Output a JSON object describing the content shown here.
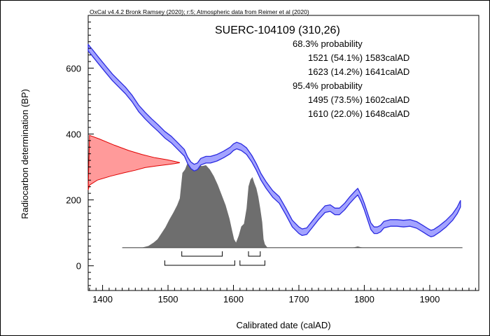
{
  "chart_data": {
    "type": "area",
    "credit": "OxCal v4.4.2 Bronk Ramsey (2020); r:5; Atmospheric data from Reimer et al (2020)",
    "title": "SUERC-104109 (310,26)",
    "xlabel": "Calibrated date (calAD)",
    "ylabel": "Radiocarbon determination (BP)",
    "xlim": [
      1378,
      1975
    ],
    "ylim": [
      -75,
      760
    ],
    "x_ticks": [
      "1400",
      "1500",
      "1600",
      "1700",
      "1800",
      "1900"
    ],
    "x_tick_values": [
      1400,
      1500,
      1600,
      1700,
      1800,
      1900
    ],
    "y_ticks": [
      "0",
      "200",
      "400",
      "600"
    ],
    "y_tick_values": [
      0,
      200,
      400,
      600
    ],
    "measurement": {
      "name": "SUERC-104109",
      "bp": 310,
      "error": 26
    },
    "ranges_text": [
      "68.3% probability",
      "1521 (54.1%) 1583calAD",
      "1623 (14.2%) 1641calAD",
      "95.4% probability",
      "1495 (73.5%) 1602calAD",
      "1610 (22.0%) 1648calAD"
    ],
    "ranges_68": [
      [
        1521,
        1583
      ],
      [
        1623,
        1641
      ]
    ],
    "ranges_95": [
      [
        1495,
        1602
      ],
      [
        1610,
        1648
      ]
    ],
    "calibration_curve": {
      "x": [
        1378,
        1385,
        1395,
        1405,
        1415,
        1425,
        1435,
        1445,
        1455,
        1465,
        1475,
        1485,
        1495,
        1505,
        1515,
        1525,
        1530,
        1535,
        1540,
        1545,
        1550,
        1558,
        1565,
        1575,
        1585,
        1595,
        1600,
        1605,
        1612,
        1620,
        1628,
        1635,
        1642,
        1650,
        1660,
        1670,
        1680,
        1690,
        1700,
        1705,
        1712,
        1720,
        1730,
        1740,
        1748,
        1755,
        1762,
        1770,
        1778,
        1785,
        1790,
        1795,
        1800,
        1805,
        1810,
        1815,
        1820,
        1825,
        1830,
        1840,
        1850,
        1860,
        1870,
        1880,
        1890,
        1898,
        1902,
        1906,
        1915,
        1925,
        1935,
        1942,
        1947
      ],
      "y": [
        662,
        645,
        620,
        596,
        572,
        552,
        532,
        508,
        478,
        456,
        436,
        418,
        398,
        383,
        363,
        343,
        320,
        305,
        298,
        302,
        316,
        322,
        322,
        328,
        338,
        350,
        360,
        365,
        360,
        348,
        325,
        300,
        270,
        245,
        218,
        200,
        165,
        128,
        108,
        102,
        105,
        125,
        150,
        172,
        175,
        165,
        165,
        180,
        200,
        215,
        225,
        205,
        180,
        150,
        120,
        108,
        108,
        113,
        125,
        130,
        130,
        128,
        130,
        124,
        112,
        102,
        98,
        100,
        112,
        128,
        148,
        168,
        188
      ],
      "half_width": 10
    },
    "measurement_density": {
      "y": [
        230,
        245,
        260,
        272,
        282,
        290,
        298,
        303,
        307,
        310,
        313,
        317,
        322,
        328,
        338,
        350,
        366,
        385,
        396
      ],
      "x_extent": [
        1378,
        1380,
        1392,
        1412,
        1432,
        1450,
        1465,
        1482,
        1498,
        1510,
        1518,
        1510,
        1498,
        1480,
        1460,
        1440,
        1418,
        1395,
        1380
      ]
    },
    "calibrated_distribution": {
      "x": [
        1430,
        1460,
        1470,
        1478,
        1484,
        1490,
        1496,
        1502,
        1508,
        1514,
        1518,
        1522,
        1526,
        1530,
        1534,
        1538,
        1542,
        1546,
        1552,
        1558,
        1564,
        1570,
        1576,
        1582,
        1588,
        1594,
        1598,
        1601,
        1604,
        1608,
        1612,
        1616,
        1620,
        1623,
        1626,
        1629,
        1632,
        1635,
        1638,
        1641,
        1644,
        1646,
        1648,
        1652,
        1660,
        1780,
        1785,
        1790,
        1795,
        1800,
        1950
      ],
      "y": [
        0,
        0,
        2,
        6,
        10,
        17,
        24,
        33,
        41,
        50,
        58,
        88,
        92,
        100,
        99,
        98,
        94,
        97,
        96,
        97,
        92,
        84,
        74,
        62,
        50,
        34,
        20,
        10,
        6,
        14,
        25,
        28,
        46,
        72,
        80,
        83,
        76,
        70,
        60,
        46,
        30,
        10,
        4,
        0,
        0,
        0,
        0.5,
        1.5,
        0.5,
        0,
        0
      ],
      "baseline_bp": 55,
      "peak_height_bp": 258,
      "x_extent": [
        1430,
        1950
      ]
    },
    "colors": {
      "curve_fill": "#a3a3ff",
      "curve_stroke": "#2a2ae0",
      "measurement_fill": "#ff9a9a",
      "measurement_stroke": "#e00000",
      "distribution_fill": "#6e6e6e",
      "distribution_stroke": "#4d4d4d",
      "axis": "#000000"
    }
  }
}
